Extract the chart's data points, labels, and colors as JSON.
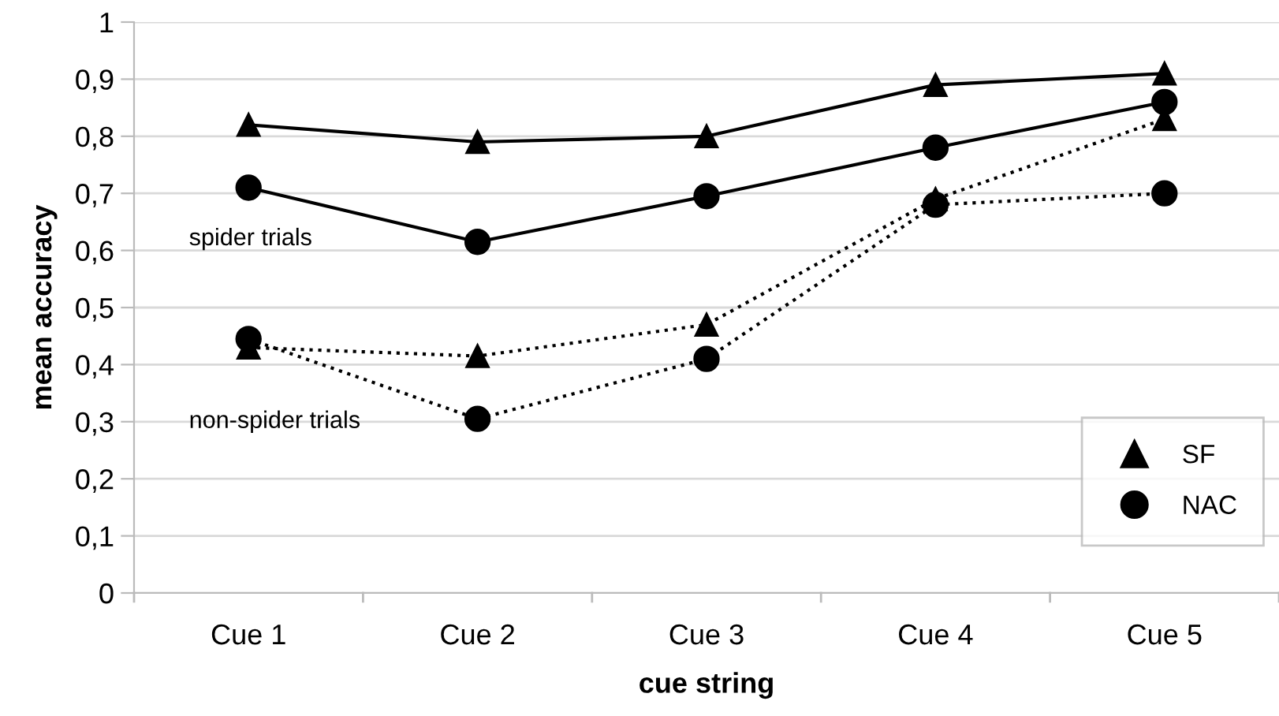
{
  "chart_data": {
    "type": "line",
    "xlabel": "cue string",
    "ylabel": "mean accuracy",
    "categories": [
      "Cue 1",
      "Cue 2",
      "Cue 3",
      "Cue 4",
      "Cue 5"
    ],
    "series": [
      {
        "name": "SF",
        "color": "#000000",
        "marker": "triangle",
        "line_style": "solid",
        "values": [
          0.82,
          0.79,
          0.8,
          0.89,
          0.91
        ]
      },
      {
        "name": "NAC",
        "color": "#000000",
        "marker": "circle",
        "line_style": "solid",
        "values": [
          0.71,
          0.615,
          0.695,
          0.78,
          0.86
        ]
      },
      {
        "color": "#000000",
        "marker": "triangle",
        "line_style": "dotted",
        "values": [
          0.43,
          0.415,
          0.47,
          0.69,
          0.83
        ]
      },
      {
        "color": "#000000",
        "marker": "circle",
        "line_style": "dotted",
        "values": [
          0.445,
          0.305,
          0.41,
          0.68,
          0.7
        ]
      }
    ],
    "ylim": [
      0,
      1
    ],
    "yticks": [
      0,
      {
        "value": 0.1,
        "label": "0,1"
      },
      {
        "value": 0.2,
        "label": "0,2"
      },
      {
        "value": 0.3,
        "label": "0,3"
      },
      {
        "value": 0.4,
        "label": "0,4"
      },
      {
        "value": 0.5,
        "label": "0,5"
      },
      {
        "value": 0.6,
        "label": "0,6"
      },
      {
        "value": 0.7,
        "label": "0,7"
      },
      {
        "value": 0.8,
        "label": "0,8"
      },
      {
        "value": 0.9,
        "label": "0,9"
      },
      1
    ],
    "annotations": [
      "spider trials",
      "non-spider trials"
    ],
    "grid": "y",
    "legend": "bottom right"
  }
}
